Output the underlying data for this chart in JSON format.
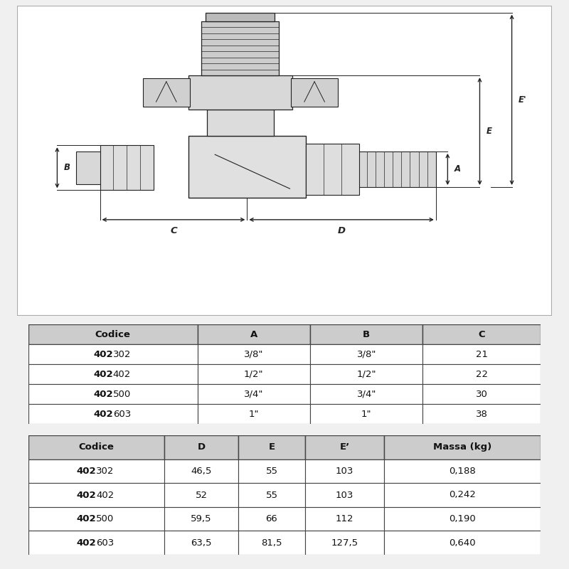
{
  "bg_color": "#f0f0f0",
  "drawing_bg": "#ffffff",
  "table1_headers": [
    "Codice",
    "A",
    "B",
    "C"
  ],
  "table1_rows": [
    [
      "402302",
      "3/8\"",
      "3/8\"",
      "21"
    ],
    [
      "402402",
      "1/2\"",
      "1/2\"",
      "22"
    ],
    [
      "402500",
      "3/4\"",
      "3/4\"",
      "30"
    ],
    [
      "402603",
      "1\"",
      "1\"",
      "38"
    ]
  ],
  "table1_suffixes": [
    "302",
    "402",
    "500",
    "603"
  ],
  "table2_headers": [
    "Codice",
    "D",
    "E",
    "E’",
    "Massa (kg)"
  ],
  "table2_rows": [
    [
      "402302",
      "46,5",
      "55",
      "103",
      "0,188"
    ],
    [
      "402402",
      "52",
      "55",
      "103",
      "0,242"
    ],
    [
      "402500",
      "59,5",
      "66",
      "112",
      "0,190"
    ],
    [
      "402603",
      "63,5",
      "81,5",
      "127,5",
      "0,640"
    ]
  ],
  "table2_suffixes": [
    "302",
    "402",
    "500",
    "603"
  ],
  "header_bg": "#cccccc",
  "row_bg": "#ffffff",
  "border_color": "#444444",
  "text_color": "#111111",
  "dim_color": "#222222",
  "line_color": "#222222"
}
